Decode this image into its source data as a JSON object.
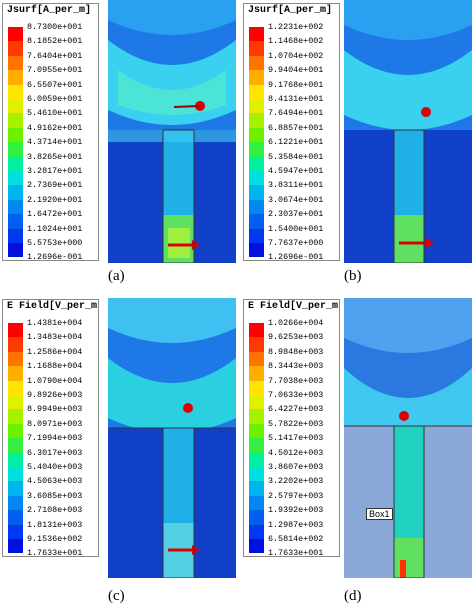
{
  "panels": [
    {
      "id": "a",
      "title": "Jsurf[A_per_m]",
      "caption": "(a)",
      "ticks": [
        "8.7300e+001",
        "8.1852e+001",
        "7.6404e+001",
        "7.0955e+001",
        "6.5507e+001",
        "6.0059e+001",
        "5.4610e+001",
        "4.9162e+001",
        "4.3714e+001",
        "3.8265e+001",
        "3.2817e+001",
        "2.7369e+001",
        "2.1920e+001",
        "1.6472e+001",
        "1.1024e+001",
        "5.5753e+000",
        "1.2696e-001"
      ]
    },
    {
      "id": "b",
      "title": "Jsurf[A_per_m]",
      "caption": "(b)",
      "ticks": [
        "1.2231e+002",
        "1.1468e+002",
        "1.0704e+002",
        "9.9404e+001",
        "9.1768e+001",
        "8.4131e+001",
        "7.6494e+001",
        "6.8857e+001",
        "6.1221e+001",
        "5.3584e+001",
        "4.5947e+001",
        "3.8311e+001",
        "3.0674e+001",
        "2.3037e+001",
        "1.5400e+001",
        "7.7637e+000",
        "1.2696e-001"
      ]
    },
    {
      "id": "c",
      "title": "E Field[V_per_m",
      "caption": "(c)",
      "ticks": [
        "1.4381e+004",
        "1.3483e+004",
        "1.2586e+004",
        "1.1688e+004",
        "1.0790e+004",
        "9.8926e+003",
        "8.9949e+003",
        "8.0971e+003",
        "7.1994e+003",
        "6.3017e+003",
        "5.4040e+003",
        "4.5063e+003",
        "3.6085e+003",
        "2.7108e+003",
        "1.8131e+003",
        "9.1536e+002",
        "1.7633e+001"
      ]
    },
    {
      "id": "d",
      "title": "E Field[V_per_m",
      "caption": "(d)",
      "ticks": [
        "1.0266e+004",
        "9.6253e+003",
        "8.9848e+003",
        "8.3443e+003",
        "7.7038e+003",
        "7.0633e+003",
        "6.4227e+003",
        "5.7822e+003",
        "5.1417e+003",
        "4.5012e+003",
        "3.8607e+003",
        "3.2202e+003",
        "2.5797e+003",
        "1.9392e+003",
        "1.2987e+003",
        "6.5814e+002",
        "1.7633e+001"
      ],
      "box_label": "Box1"
    }
  ],
  "scale_colors": [
    "#ff0000",
    "#ff3a00",
    "#ff7400",
    "#ffae00",
    "#ffe500",
    "#e0f000",
    "#a8f000",
    "#6cf000",
    "#30f040",
    "#00f0a0",
    "#00e0e0",
    "#00b4f0",
    "#0088f0",
    "#0060f0",
    "#0038f0",
    "#0010e0"
  ]
}
